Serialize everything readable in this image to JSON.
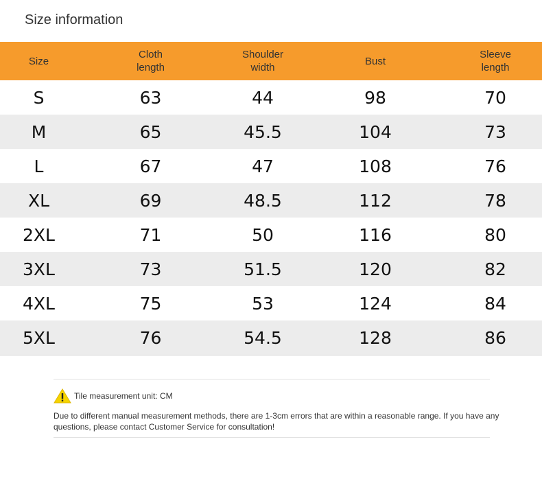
{
  "page": {
    "title": "Size information"
  },
  "table": {
    "headers": [
      "Size",
      "Cloth\nlength",
      "Shoulder\nwidth",
      "Bust",
      "Sleeve\nlength"
    ],
    "rows": [
      [
        "S",
        "63",
        "44",
        "98",
        "70"
      ],
      [
        "M",
        "65",
        "45.5",
        "104",
        "73"
      ],
      [
        "L",
        "67",
        "47",
        "108",
        "76"
      ],
      [
        "XL",
        "69",
        "48.5",
        "112",
        "78"
      ],
      [
        "2XL",
        "71",
        "50",
        "116",
        "80"
      ],
      [
        "3XL",
        "73",
        "51.5",
        "120",
        "82"
      ],
      [
        "4XL",
        "75",
        "53",
        "124",
        "84"
      ],
      [
        "5XL",
        "76",
        "54.5",
        "128",
        "86"
      ]
    ]
  },
  "note": {
    "icon": "warning-icon",
    "unit_text": "Tile measurement unit: CM",
    "body": "Due to different manual measurement methods, there are 1-3cm errors that are within a reasonable range. If you have any questions, please contact Customer Service for consultation!"
  },
  "colors": {
    "header_bg": "#f69b2c",
    "stripe": "#ececec",
    "warning": "#f5d300"
  }
}
